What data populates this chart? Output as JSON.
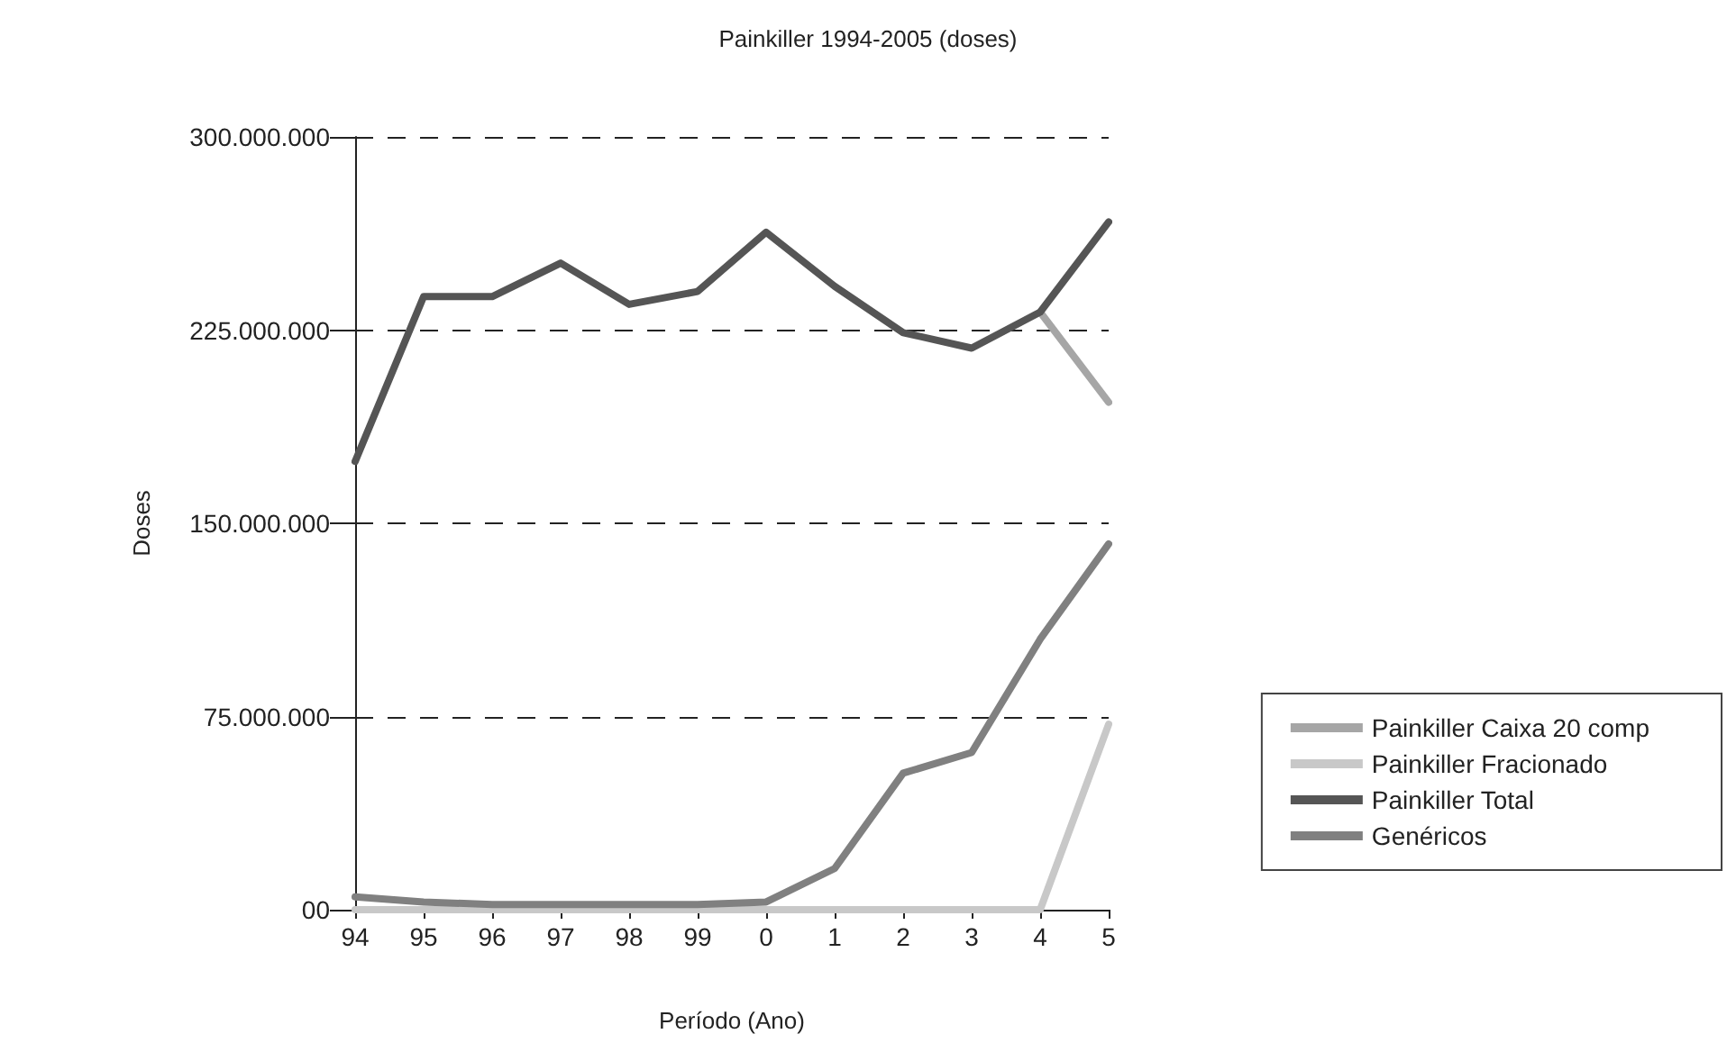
{
  "chart_data": {
    "type": "line",
    "title": "Painkiller 1994-2005 (doses)",
    "xlabel": "Período (Ano)",
    "ylabel": "Doses",
    "categories": [
      "94",
      "95",
      "96",
      "97",
      "98",
      "99",
      "0",
      "1",
      "2",
      "3",
      "4",
      "5"
    ],
    "series": [
      {
        "name": "Painkiller Caixa 20 comp",
        "color": "#a6a6a6",
        "values": [
          null,
          null,
          null,
          null,
          null,
          null,
          null,
          null,
          null,
          null,
          232000000,
          197000000
        ]
      },
      {
        "name": "Painkiller Fracionado",
        "color": "#c8c8c8",
        "values": [
          0,
          0,
          0,
          0,
          0,
          0,
          0,
          0,
          0,
          0,
          0,
          72000000
        ]
      },
      {
        "name": "Painkiller Total",
        "color": "#555555",
        "values": [
          174000000,
          238000000,
          238000000,
          251000000,
          235000000,
          240000000,
          263000000,
          242000000,
          224000000,
          218000000,
          232000000,
          267000000
        ]
      },
      {
        "name": "Genéricos",
        "color": "#808080",
        "values": [
          5000000,
          3000000,
          2000000,
          2000000,
          2000000,
          2000000,
          3000000,
          16000000,
          53000000,
          61000000,
          105000000,
          142000000
        ]
      }
    ],
    "ylim": [
      0,
      300000000
    ],
    "yticks": [
      {
        "value": 0,
        "label": "00"
      },
      {
        "value": 75000000,
        "label": "75.000.000"
      },
      {
        "value": 150000000,
        "label": "150.000.000"
      },
      {
        "value": 225000000,
        "label": "225.000.000"
      },
      {
        "value": 300000000,
        "label": "300.000.000"
      }
    ],
    "grid": "y",
    "legend": "bottom right",
    "marker": "none",
    "line_style": "solid"
  }
}
